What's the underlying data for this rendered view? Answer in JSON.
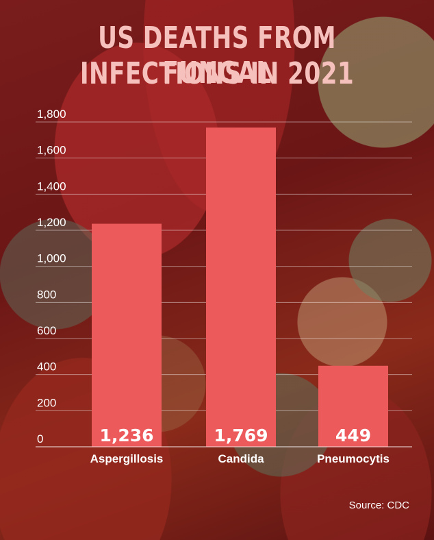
{
  "chart_data": {
    "type": "bar",
    "title_lines": [
      "US DEATHS FROM FUNGAL",
      "INFECTIONS IN 2021"
    ],
    "categories": [
      "Aspergillosis",
      "Candida",
      "Pneumocytis"
    ],
    "values": [
      1236,
      1769,
      449
    ],
    "value_labels": [
      "1,236",
      "1,769",
      "449"
    ],
    "ylim": [
      0,
      1800
    ],
    "yticks": [
      0,
      200,
      400,
      600,
      800,
      1000,
      1200,
      1400,
      1600,
      1800
    ],
    "ytick_labels": [
      "0",
      "200",
      "400",
      "600",
      "800",
      "1,000",
      "1,200",
      "1,400",
      "1,600",
      "1,800"
    ],
    "xlabel": "",
    "ylabel": "",
    "grid": true,
    "bar_color": "#ec5a5c",
    "title_color": "#f6c1bc",
    "source": "Source: CDC"
  }
}
